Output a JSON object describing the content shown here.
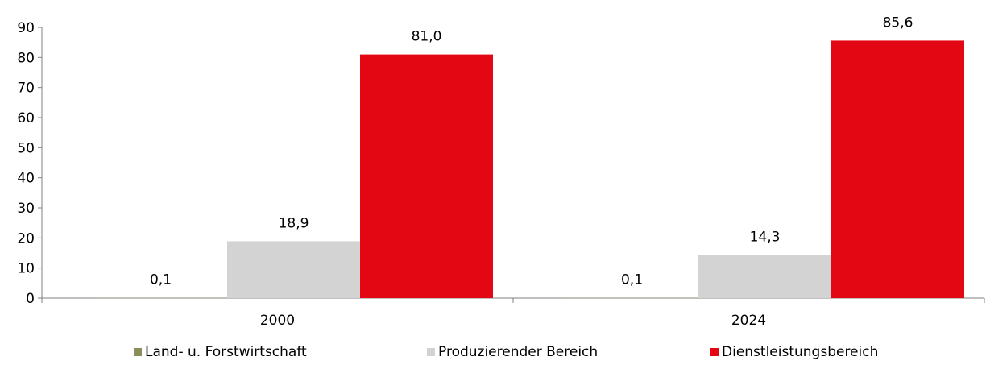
{
  "chart_data": {
    "type": "bar",
    "categories": [
      "2000",
      "2024"
    ],
    "series": [
      {
        "name": "Land- u. Forstwirtschaft",
        "values": [
          0.1,
          0.1
        ],
        "labels": [
          "0,1",
          "0,1"
        ],
        "color": "#8c8c5a"
      },
      {
        "name": "Produzierender Bereich",
        "values": [
          18.9,
          14.3
        ],
        "labels": [
          "18,9",
          "14,3"
        ],
        "color": "#d3d3d3"
      },
      {
        "name": "Dienstleistungsbereich",
        "values": [
          81.0,
          85.6
        ],
        "labels": [
          "81,0",
          "85,6"
        ],
        "color": "#e30613"
      }
    ],
    "ylim": [
      0,
      90
    ],
    "yticks": [
      "0",
      "10",
      "20",
      "30",
      "40",
      "50",
      "60",
      "70",
      "80",
      "90"
    ],
    "grid": false,
    "legend_position": "bottom"
  }
}
